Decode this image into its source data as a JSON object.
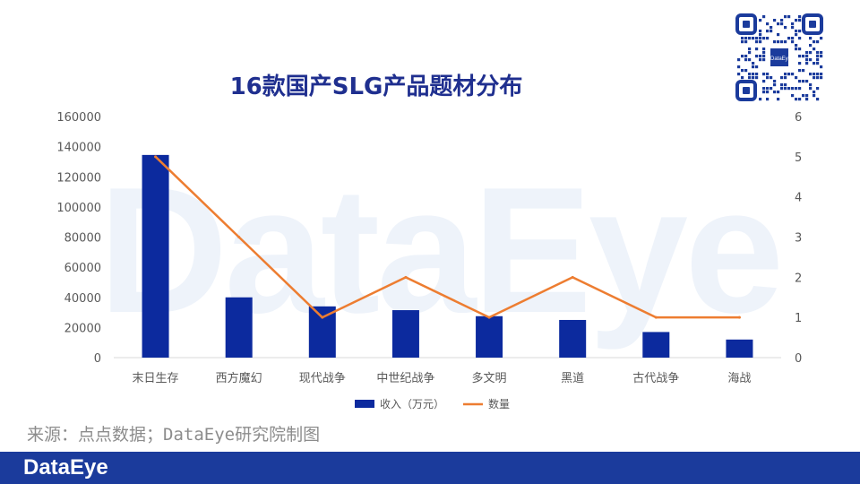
{
  "watermark": "DataEye",
  "chart_data": {
    "type": "bar",
    "title": "16款国产SLG产品题材分布",
    "categories": [
      "末日生存",
      "西方魔幻",
      "现代战争",
      "中世纪战争",
      "多文明",
      "黑道",
      "古代战争",
      "海战"
    ],
    "series": [
      {
        "name": "收入（万元）",
        "type": "bar",
        "axis": "left",
        "color": "#0c2a9e",
        "values": [
          134500,
          40000,
          34000,
          31500,
          27500,
          25000,
          17000,
          12000
        ]
      },
      {
        "name": "数量",
        "type": "line",
        "axis": "right",
        "color": "#ed7d31",
        "values": [
          5,
          3,
          1,
          2,
          1,
          2,
          1,
          1
        ]
      }
    ],
    "y_left": {
      "min": 0,
      "max": 160000,
      "ticks": [
        "0",
        "20000",
        "40000",
        "60000",
        "80000",
        "100000",
        "120000",
        "140000",
        "160000"
      ]
    },
    "y_right": {
      "min": 0,
      "max": 6,
      "ticks": [
        "0",
        "1",
        "2",
        "3",
        "4",
        "5",
        "6"
      ]
    },
    "legend_position": "bottom",
    "grid": false
  },
  "source": "来源：点点数据；DataEye研究院制图",
  "footer_logo": "DataEye",
  "qr_label": "DataEye"
}
